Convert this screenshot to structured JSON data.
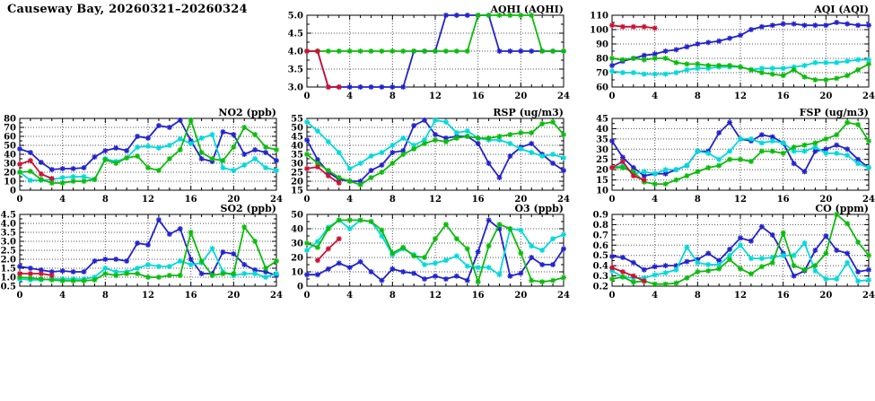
{
  "page": {
    "title": "Causeway Bay, 20260321–20260324"
  },
  "axis": {
    "xticks": [
      0,
      4,
      8,
      12,
      16,
      20,
      24
    ],
    "xlim": [
      0,
      24
    ]
  },
  "colors": {
    "blue": "#2222cc",
    "cyan": "#00d9d9",
    "green": "#0cbb0c",
    "red": "#cc1133"
  },
  "chart_data": [
    {
      "id": "aqhi",
      "type": "line",
      "title": "AQHI (AQHI)",
      "col": 2,
      "row": 1,
      "xlabel": "",
      "ylabel": "",
      "grid": true,
      "legend": "none",
      "xlim": [
        0,
        24
      ],
      "ylim": [
        3.0,
        5.0
      ],
      "ytick_vals": [
        3.0,
        3.5,
        4.0,
        4.5,
        5.0
      ],
      "ytick_labels": [
        "3.0",
        "3.5",
        "4.0",
        "4.5",
        "5.0"
      ],
      "series": [
        {
          "name": "blue",
          "color": "#2222cc",
          "start": 0,
          "values": [
            4,
            4,
            3,
            3,
            3,
            3,
            3,
            3,
            3,
            3,
            4,
            4,
            4,
            5,
            5,
            5,
            5,
            5,
            4,
            4,
            4,
            4,
            4,
            4,
            4
          ]
        },
        {
          "name": "green",
          "color": "#0cbb0c",
          "start": 0,
          "values": [
            4,
            4,
            4,
            4,
            4,
            4,
            4,
            4,
            4,
            4,
            4,
            4,
            4,
            4,
            4,
            4,
            5,
            5,
            5,
            5,
            5,
            5,
            4,
            4,
            4
          ]
        },
        {
          "name": "red",
          "color": "#cc1133",
          "start": 0,
          "values": [
            4,
            4,
            3,
            3
          ]
        }
      ]
    },
    {
      "id": "aqi",
      "type": "line",
      "title": "AQI (AQI)",
      "col": 3,
      "row": 1,
      "xlabel": "",
      "ylabel": "",
      "grid": true,
      "legend": "none",
      "xlim": [
        0,
        24
      ],
      "ylim": [
        60,
        110
      ],
      "ytick_vals": [
        60,
        70,
        80,
        90,
        100,
        110
      ],
      "ytick_labels": [
        "60",
        "70",
        "80",
        "90",
        "100",
        "110"
      ],
      "series": [
        {
          "name": "blue",
          "color": "#2222cc",
          "start": 0,
          "values": [
            75,
            78,
            80,
            82,
            83,
            85,
            86,
            88,
            90,
            91,
            92,
            94,
            96,
            100,
            102,
            103,
            104,
            104,
            103,
            103,
            103,
            105,
            104,
            103,
            103
          ]
        },
        {
          "name": "cyan",
          "color": "#00d9d9",
          "start": 0,
          "values": [
            71,
            70,
            70,
            69,
            69,
            69,
            70,
            72,
            73,
            73,
            74,
            74,
            74,
            72,
            73,
            73,
            73,
            74,
            75,
            77,
            77,
            77,
            78,
            79,
            79
          ]
        },
        {
          "name": "green",
          "color": "#0cbb0c",
          "start": 0,
          "values": [
            80,
            79,
            80,
            79,
            80,
            80,
            77,
            76,
            76,
            75,
            75,
            75,
            74,
            72,
            70,
            69,
            68,
            72,
            67,
            65,
            65,
            66,
            68,
            72,
            76
          ]
        },
        {
          "name": "red",
          "color": "#cc1133",
          "start": 0,
          "values": [
            103,
            102,
            102,
            102,
            101
          ]
        }
      ]
    },
    {
      "id": "no2",
      "type": "line",
      "title": "NO2 (ppb)",
      "col": 1,
      "row": 2,
      "xlabel": "",
      "ylabel": "",
      "grid": true,
      "legend": "none",
      "xlim": [
        0,
        24
      ],
      "ylim": [
        0,
        80
      ],
      "ytick_vals": [
        0,
        10,
        20,
        30,
        40,
        50,
        60,
        70,
        80
      ],
      "ytick_labels": [
        "0",
        "10",
        "20",
        "30",
        "40",
        "50",
        "60",
        "70",
        "80"
      ],
      "series": [
        {
          "name": "blue",
          "color": "#2222cc",
          "start": 0,
          "values": [
            46,
            42,
            31,
            23,
            24,
            24,
            25,
            37,
            44,
            47,
            44,
            60,
            58,
            72,
            70,
            78,
            55,
            35,
            32,
            65,
            62,
            40,
            45,
            42,
            33
          ]
        },
        {
          "name": "cyan",
          "color": "#00d9d9",
          "start": 0,
          "values": [
            20,
            11,
            11,
            12,
            14,
            15,
            15,
            12,
            35,
            32,
            36,
            48,
            49,
            47,
            50,
            57,
            52,
            58,
            62,
            25,
            22,
            28,
            35,
            25,
            22
          ]
        },
        {
          "name": "green",
          "color": "#0cbb0c",
          "start": 0,
          "values": [
            20,
            21,
            12,
            8,
            8,
            10,
            10,
            12,
            34,
            30,
            36,
            38,
            25,
            22,
            35,
            45,
            78,
            42,
            35,
            33,
            48,
            70,
            62,
            48,
            45
          ]
        },
        {
          "name": "red",
          "color": "#cc1133",
          "start": 0,
          "values": [
            29,
            33,
            18,
            13
          ]
        }
      ]
    },
    {
      "id": "rsp",
      "type": "line",
      "title": "RSP (ug/m3)",
      "col": 2,
      "row": 2,
      "xlabel": "",
      "ylabel": "",
      "grid": true,
      "legend": "none",
      "xlim": [
        0,
        24
      ],
      "ylim": [
        15,
        55
      ],
      "ytick_vals": [
        15,
        20,
        25,
        30,
        35,
        40,
        45,
        50,
        55
      ],
      "ytick_labels": [
        "15",
        "20",
        "25",
        "30",
        "35",
        "40",
        "45",
        "50",
        "55"
      ],
      "series": [
        {
          "name": "blue",
          "color": "#2222cc",
          "start": 0,
          "values": [
            43,
            32,
            25,
            21,
            20,
            20,
            26,
            29,
            36,
            37,
            51,
            54,
            46,
            44,
            45,
            45,
            41,
            30,
            22,
            34,
            39,
            41,
            35,
            30,
            26
          ]
        },
        {
          "name": "cyan",
          "color": "#00d9d9",
          "start": 0,
          "values": [
            53,
            48,
            42,
            36,
            27,
            30,
            34,
            36,
            40,
            44,
            40,
            43,
            54,
            53,
            47,
            48,
            44,
            43,
            43,
            41,
            38,
            36,
            34,
            35,
            33
          ]
        },
        {
          "name": "green",
          "color": "#0cbb0c",
          "start": 0,
          "values": [
            35,
            30,
            26,
            22,
            20,
            18,
            22,
            25,
            30,
            35,
            38,
            41,
            43,
            42,
            44,
            45,
            44,
            44,
            45,
            46,
            47,
            47,
            52,
            53,
            46
          ]
        },
        {
          "name": "red",
          "color": "#cc1133",
          "start": 0,
          "values": [
            27,
            28,
            23,
            19
          ]
        }
      ]
    },
    {
      "id": "fsp",
      "type": "line",
      "title": "FSP (ug/m3)",
      "col": 3,
      "row": 2,
      "xlabel": "",
      "ylabel": "",
      "grid": true,
      "legend": "none",
      "xlim": [
        0,
        24
      ],
      "ylim": [
        10,
        45
      ],
      "ytick_vals": [
        10,
        15,
        20,
        25,
        30,
        35,
        40,
        45
      ],
      "ytick_labels": [
        "10",
        "15",
        "20",
        "25",
        "30",
        "35",
        "40",
        "45"
      ],
      "series": [
        {
          "name": "blue",
          "color": "#2222cc",
          "start": 0,
          "values": [
            34,
            26,
            21,
            17,
            18,
            18,
            20,
            22,
            29,
            29,
            38,
            43,
            35,
            34,
            37,
            36,
            33,
            23,
            19,
            29,
            30,
            32,
            30,
            25,
            21
          ]
        },
        {
          "name": "cyan",
          "color": "#00d9d9",
          "start": 0,
          "values": [
            21,
            22,
            18,
            19,
            18,
            20,
            20,
            22,
            29,
            28,
            25,
            29,
            35,
            35,
            33,
            34,
            33,
            29,
            29,
            31,
            28,
            28,
            27,
            23,
            21
          ]
        },
        {
          "name": "green",
          "color": "#0cbb0c",
          "start": 0,
          "values": [
            21,
            21,
            19,
            14,
            13,
            13,
            15,
            17,
            19,
            21,
            22,
            25,
            25,
            24,
            29,
            29,
            28,
            31,
            32,
            33,
            35,
            37,
            43,
            42,
            34
          ]
        },
        {
          "name": "red",
          "color": "#cc1133",
          "start": 0,
          "values": [
            21,
            24,
            17,
            15
          ]
        }
      ]
    },
    {
      "id": "so2",
      "type": "line",
      "title": "SO2 (ppb)",
      "col": 1,
      "row": 3,
      "xlabel": "",
      "ylabel": "",
      "grid": true,
      "legend": "none",
      "xlim": [
        0,
        24
      ],
      "ylim": [
        0.5,
        4.5
      ],
      "ytick_vals": [
        0.5,
        1.0,
        1.5,
        2.0,
        2.5,
        3.0,
        3.5,
        4.0,
        4.5
      ],
      "ytick_labels": [
        "0.5",
        "1.0",
        "1.5",
        "2.0",
        "2.5",
        "3.0",
        "3.5",
        "4.0",
        "4.5"
      ],
      "series": [
        {
          "name": "blue",
          "color": "#2222cc",
          "start": 0,
          "values": [
            1.6,
            1.5,
            1.4,
            1.3,
            1.35,
            1.3,
            1.3,
            1.9,
            2.0,
            2.0,
            1.9,
            2.9,
            2.8,
            4.2,
            3.4,
            3.7,
            2.0,
            1.2,
            1.2,
            2.4,
            2.3,
            1.7,
            1.4,
            1.3,
            1.1
          ]
        },
        {
          "name": "cyan",
          "color": "#00d9d9",
          "start": 0,
          "values": [
            0.9,
            0.85,
            0.85,
            0.9,
            0.9,
            0.9,
            0.9,
            1.0,
            1.5,
            1.3,
            1.3,
            1.5,
            1.7,
            1.6,
            1.6,
            1.9,
            1.7,
            1.8,
            2.6,
            1.3,
            1.1,
            1.2,
            1.2,
            1.0,
            1.2
          ]
        },
        {
          "name": "green",
          "color": "#0cbb0c",
          "start": 0,
          "values": [
            1.0,
            0.95,
            0.9,
            0.85,
            0.8,
            0.8,
            0.8,
            0.85,
            1.2,
            1.1,
            1.2,
            1.2,
            1.0,
            1.0,
            1.1,
            1.1,
            3.5,
            1.9,
            1.1,
            1.2,
            1.2,
            3.8,
            3.0,
            1.5,
            1.9
          ]
        },
        {
          "name": "red",
          "color": "#cc1133",
          "start": 0,
          "values": [
            1.2,
            1.2,
            1.2,
            1.1
          ]
        }
      ]
    },
    {
      "id": "o3",
      "type": "line",
      "title": "O3 (ppb)",
      "col": 2,
      "row": 3,
      "xlabel": "",
      "ylabel": "",
      "grid": true,
      "legend": "none",
      "xlim": [
        0,
        24
      ],
      "ylim": [
        0,
        50
      ],
      "ytick_vals": [
        0,
        10,
        20,
        30,
        40,
        50
      ],
      "ytick_labels": [
        "0",
        "10",
        "20",
        "30",
        "40",
        "50"
      ],
      "series": [
        {
          "name": "blue",
          "color": "#2222cc",
          "start": 0,
          "values": [
            8,
            8,
            12,
            16,
            13,
            17,
            10,
            4,
            12,
            10,
            9,
            5,
            7,
            5,
            7,
            4,
            24,
            46,
            40,
            7,
            9,
            20,
            15,
            15,
            26
          ]
        },
        {
          "name": "cyan",
          "color": "#00d9d9",
          "start": 0,
          "values": [
            25,
            31,
            41,
            46,
            40,
            46,
            45,
            35,
            22,
            26,
            22,
            15,
            16,
            18,
            21,
            14,
            13,
            13,
            8,
            40,
            39,
            28,
            25,
            33,
            36
          ]
        },
        {
          "name": "green",
          "color": "#0cbb0c",
          "start": 0,
          "values": [
            30,
            27,
            40,
            46,
            46,
            46,
            45,
            39,
            23,
            27,
            21,
            20,
            33,
            43,
            33,
            26,
            3,
            28,
            43,
            40,
            23,
            4,
            3,
            4,
            6
          ]
        },
        {
          "name": "red",
          "color": "#cc1133",
          "start": 1,
          "values": [
            18,
            26,
            33
          ]
        }
      ]
    },
    {
      "id": "co",
      "type": "line",
      "title": "CO (ppm)",
      "col": 3,
      "row": 3,
      "xlabel": "",
      "ylabel": "",
      "grid": true,
      "legend": "none",
      "xlim": [
        0,
        24
      ],
      "ylim": [
        0.2,
        0.9
      ],
      "ytick_vals": [
        0.2,
        0.3,
        0.4,
        0.5,
        0.6,
        0.7,
        0.8,
        0.9
      ],
      "ytick_labels": [
        "0.2",
        "0.3",
        "0.4",
        "0.5",
        "0.6",
        "0.7",
        "0.8",
        "0.9"
      ],
      "series": [
        {
          "name": "blue",
          "color": "#2222cc",
          "start": 0,
          "values": [
            0.49,
            0.48,
            0.43,
            0.36,
            0.39,
            0.4,
            0.4,
            0.44,
            0.46,
            0.52,
            0.45,
            0.56,
            0.67,
            0.64,
            0.78,
            0.7,
            0.52,
            0.3,
            0.35,
            0.55,
            0.69,
            0.55,
            0.52,
            0.34,
            0.36
          ]
        },
        {
          "name": "cyan",
          "color": "#00d9d9",
          "start": 0,
          "values": [
            0.35,
            0.29,
            0.28,
            0.28,
            0.31,
            0.33,
            0.36,
            0.58,
            0.43,
            0.41,
            0.41,
            0.5,
            0.6,
            0.47,
            0.47,
            0.48,
            0.5,
            0.5,
            0.62,
            0.35,
            0.27,
            0.27,
            0.43,
            0.25,
            0.26
          ]
        },
        {
          "name": "green",
          "color": "#0cbb0c",
          "start": 0,
          "values": [
            0.27,
            0.29,
            0.24,
            0.25,
            0.22,
            0.22,
            0.23,
            0.28,
            0.34,
            0.35,
            0.37,
            0.46,
            0.37,
            0.32,
            0.39,
            0.43,
            0.72,
            0.4,
            0.36,
            0.4,
            0.52,
            0.9,
            0.81,
            0.63,
            0.5
          ]
        },
        {
          "name": "red",
          "color": "#cc1133",
          "start": 0,
          "values": [
            0.38,
            0.34,
            0.3,
            0.25
          ]
        }
      ]
    }
  ]
}
